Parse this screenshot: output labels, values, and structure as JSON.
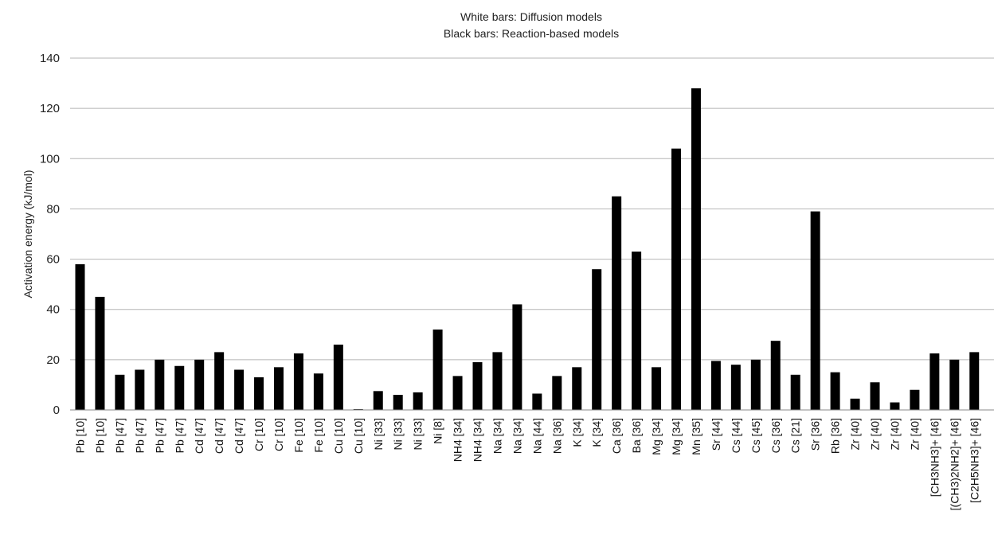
{
  "chart_data": {
    "type": "bar",
    "title_lines": [
      "White bars: Diffusion models",
      "Black bars: Reaction-based models"
    ],
    "xlabel": "",
    "ylabel": "Activation energy (kJ/mol)",
    "ylim": [
      0,
      140
    ],
    "yticks": [
      0,
      20,
      40,
      60,
      80,
      100,
      120,
      140
    ],
    "grid": true,
    "legend": "none",
    "bar_color": "#000000",
    "categories": [
      "Pb [10]",
      "Pb [10]",
      "Pb [47]",
      "Pb [47]",
      "Pb [47]",
      "Pb [47]",
      "Cd [47]",
      "Cd [47]",
      "Cd [47]",
      "Cr [10]",
      "Cr [10]",
      "Fe [10]",
      "Fe [10]",
      "Cu [10]",
      "Cu [10]",
      "Ni [33]",
      "Ni [33]",
      "Ni [33]",
      "Ni [8]",
      "NH4 [34]",
      "NH4 [34]",
      "Na [34]",
      "Na [34]",
      "Na [44]",
      "Na [36]",
      "K [34]",
      "K [34]",
      "Ca [36]",
      "Ba [36]",
      "Mg [34]",
      "Mg [34]",
      "Mn [35]",
      "Sr [44]",
      "Cs [44]",
      "Cs [45]",
      "Cs [36]",
      "Cs [21]",
      "Sr [36]",
      "Rb [36]",
      "Zr [40]",
      "Zr [40]",
      "Zr [40]",
      "Zr [40]",
      "[CH3NH3]+ [46]",
      "[(CH3)2NH2]+ [46]",
      "[C2H5NH3]+ [46]"
    ],
    "values": [
      58,
      45,
      14,
      16,
      20,
      17.5,
      20,
      23,
      16,
      13,
      17,
      22.5,
      14.5,
      26,
      0.3,
      7.5,
      6,
      7,
      32,
      13.5,
      19,
      23,
      42,
      6.5,
      13.5,
      17,
      56,
      85,
      63,
      17,
      104,
      128,
      19.5,
      18,
      20,
      27.5,
      14,
      79,
      15,
      4.5,
      11,
      3,
      8,
      22.5,
      20,
      23
    ]
  }
}
